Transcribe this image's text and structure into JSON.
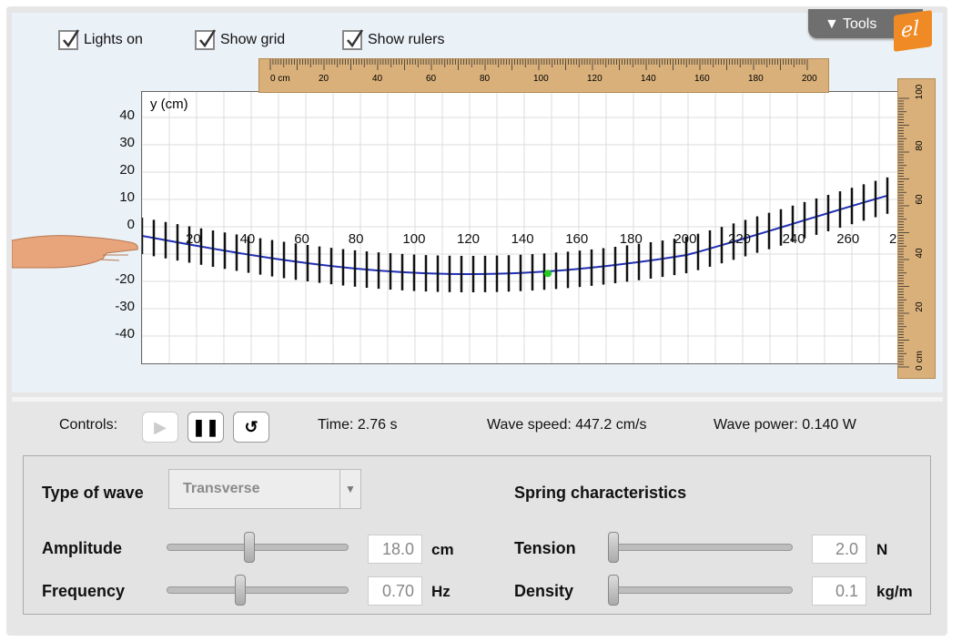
{
  "checkboxes": [
    {
      "label": "Lights on",
      "checked": true
    },
    {
      "label": "Show grid",
      "checked": true
    },
    {
      "label": "Show rulers",
      "checked": true
    }
  ],
  "tools_label": "Tools",
  "logo_text": "el",
  "h_ruler_labels": [
    "0 cm",
    "20",
    "40",
    "60",
    "80",
    "100",
    "120",
    "140",
    "160",
    "180",
    "200"
  ],
  "v_ruler_labels": [
    "100",
    "80",
    "60",
    "40",
    "20",
    "0 cm"
  ],
  "y_axis_unit": "y (cm)",
  "y_ticks": [
    "40",
    "30",
    "20",
    "10",
    "0",
    "-20",
    "-30",
    "-40"
  ],
  "x_ticks": [
    "20",
    "40",
    "60",
    "80",
    "100",
    "120",
    "140",
    "160",
    "180",
    "200",
    "220",
    "240",
    "260",
    "2"
  ],
  "controls": {
    "label": "Controls:",
    "time": "Time: 2.76 s",
    "wave_speed": "Wave speed: 447.2 cm/s",
    "wave_power": "Wave power: 0.140 W"
  },
  "panel": {
    "type_label": "Type of wave",
    "type_value": "Transverse",
    "spring_label": "Spring characteristics",
    "amplitude_label": "Amplitude",
    "amplitude_value": "18.0",
    "amplitude_unit": "cm",
    "amplitude_level": 0.45,
    "frequency_label": "Frequency",
    "frequency_value": "0.70",
    "frequency_unit": "Hz",
    "frequency_level": 0.4,
    "tension_label": "Tension",
    "tension_value": "2.0",
    "tension_unit": "N",
    "tension_level": 0.0,
    "density_label": "Density",
    "density_value": "0.1",
    "density_unit": "kg/m",
    "density_level": 0.0
  },
  "colors": {
    "accent": "#f08a24",
    "wave": "#1f2fb5",
    "marker": "#22cc22",
    "ruler": "#d9b07a"
  }
}
